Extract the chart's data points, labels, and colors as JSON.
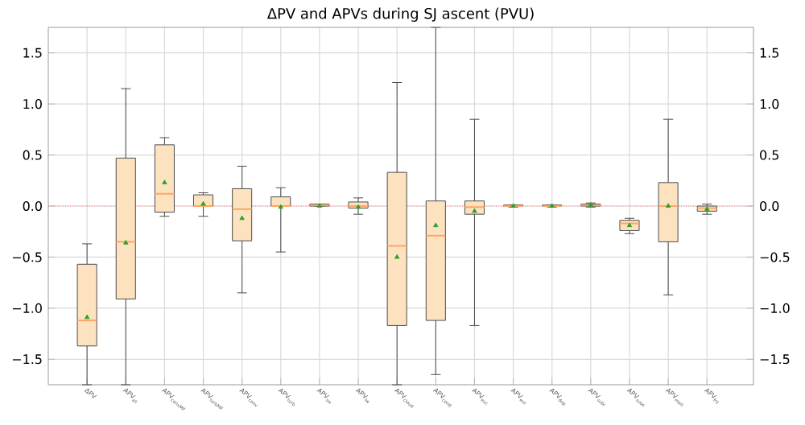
{
  "chart_data": {
    "type": "box",
    "title": "ΔPV and APVs during SJ ascent (PVU)",
    "categories": [
      "ΔPV",
      "APV$_{all}$",
      "APV$_{convMF}$",
      "APV$_{turbMF}$",
      "APV$_{conv}$",
      "APV$_{turb}$",
      "APV$_{sw}$",
      "APV$_{lw}$",
      "APV$_{cloud}$",
      "APV$_{cond}$",
      "APV$_{evc}$",
      "APV$_{evr}$",
      "APV$_{dep}$",
      "APV$_{subi}$",
      "APV$_{subs}$",
      "APV$_{melt}$",
      "APV$_{frz}$"
    ],
    "series": [
      {
        "color": "#fde2c0",
        "boxes": [
          {
            "low": -1.75,
            "q1": -1.37,
            "median": -1.12,
            "q3": -0.57,
            "high": -0.37,
            "mean": -1.09
          },
          {
            "low": -1.75,
            "q1": -0.91,
            "median": -0.35,
            "q3": 0.47,
            "high": 1.15,
            "mean": -0.36
          },
          {
            "low": -0.1,
            "q1": -0.06,
            "median": 0.12,
            "q3": 0.6,
            "high": 0.67,
            "mean": 0.23
          },
          {
            "low": -0.1,
            "q1": 0.0,
            "median": 0.0,
            "q3": 0.11,
            "high": 0.13,
            "mean": 0.02
          },
          {
            "low": -0.85,
            "q1": -0.34,
            "median": -0.03,
            "q3": 0.17,
            "high": 0.39,
            "mean": -0.12
          },
          {
            "low": -0.45,
            "q1": 0.0,
            "median": 0.0,
            "q3": 0.09,
            "high": 0.18,
            "mean": -0.01
          },
          {
            "low": 0.0,
            "q1": 0.0,
            "median": 0.01,
            "q3": 0.02,
            "high": 0.02,
            "mean": 0.0
          },
          {
            "low": -0.08,
            "q1": -0.02,
            "median": 0.0,
            "q3": 0.04,
            "high": 0.08,
            "mean": -0.01
          },
          {
            "low": -1.75,
            "q1": -1.17,
            "median": -0.39,
            "q3": 0.33,
            "high": 1.21,
            "mean": -0.5
          },
          {
            "low": -1.65,
            "q1": -1.12,
            "median": -0.29,
            "q3": 0.05,
            "high": 1.75,
            "mean": -0.19
          },
          {
            "low": -1.17,
            "q1": -0.08,
            "median": -0.01,
            "q3": 0.05,
            "high": 0.85,
            "mean": -0.05
          },
          {
            "low": -0.01,
            "q1": 0.0,
            "median": 0.0,
            "q3": 0.01,
            "high": 0.01,
            "mean": 0.0
          },
          {
            "low": -0.01,
            "q1": 0.0,
            "median": 0.0,
            "q3": 0.01,
            "high": 0.01,
            "mean": 0.0
          },
          {
            "low": -0.01,
            "q1": 0.0,
            "median": 0.01,
            "q3": 0.02,
            "high": 0.03,
            "mean": 0.01
          },
          {
            "low": -0.27,
            "q1": -0.24,
            "median": -0.17,
            "q3": -0.14,
            "high": -0.12,
            "mean": -0.19
          },
          {
            "low": -0.87,
            "q1": -0.35,
            "median": 0.0,
            "q3": 0.23,
            "high": 0.85,
            "mean": 0.0
          },
          {
            "low": -0.08,
            "q1": -0.05,
            "median": -0.02,
            "q3": 0.0,
            "high": 0.02,
            "mean": -0.03
          }
        ]
      }
    ],
    "ylim": [
      -1.75,
      1.75
    ],
    "yticks": [
      {
        "value": -1.5,
        "label": "−1.5"
      },
      {
        "value": -1,
        "label": "−1.0"
      },
      {
        "value": -0.5,
        "label": "−0.5"
      },
      {
        "value": 0,
        "label": "0.0"
      },
      {
        "value": 0.5,
        "label": "0.5"
      },
      {
        "value": 1,
        "label": "1.0"
      },
      {
        "value": 1.5,
        "label": "1.5"
      }
    ],
    "y2lim": [
      -1.75,
      1.75
    ],
    "y2ticks": [
      {
        "value": -1.5,
        "label": "−1.5"
      },
      {
        "value": -1,
        "label": "−1.0"
      },
      {
        "value": -0.5,
        "label": "−0.5"
      },
      {
        "value": 0,
        "label": "0.0"
      },
      {
        "value": 0.5,
        "label": "0.5"
      },
      {
        "value": 1,
        "label": "1.0"
      },
      {
        "value": 1.5,
        "label": "1.5"
      }
    ],
    "ref_lines": [
      {
        "axis": "y",
        "value": 0,
        "color": "#ff6b6b",
        "line_style": "dotted"
      }
    ],
    "grid": true,
    "marker": "triangle"
  }
}
